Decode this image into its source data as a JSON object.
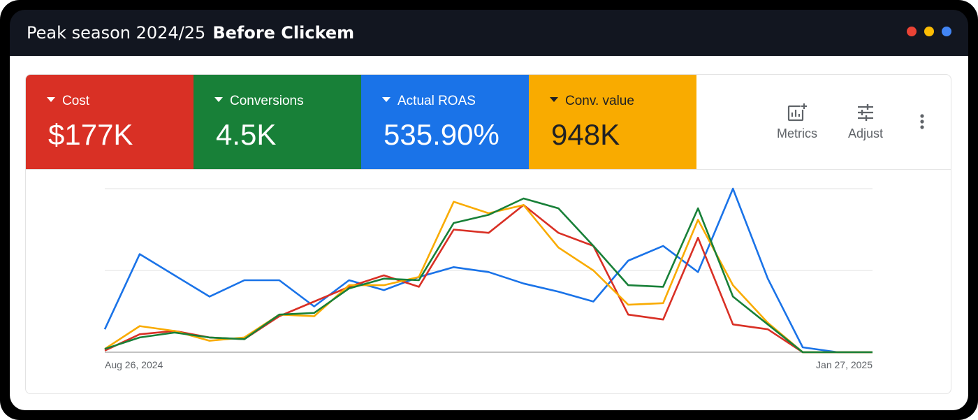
{
  "title": {
    "part1": "Peak season 2024/25",
    "part2": "Before Clickem"
  },
  "window_dots": [
    "#ea4335",
    "#fbbc04",
    "#4285f4"
  ],
  "metrics": [
    {
      "label": "Cost",
      "value": "$177K",
      "color": "#d93025",
      "text_color": "#ffffff"
    },
    {
      "label": "Conversions",
      "value": "4.5K",
      "color": "#188038",
      "text_color": "#ffffff"
    },
    {
      "label": "Actual ROAS",
      "value": "535.90%",
      "color": "#1a73e8",
      "text_color": "#ffffff"
    },
    {
      "label": "Conv. value",
      "value": "948K",
      "color": "#f9ab00",
      "text_color": "#202124"
    }
  ],
  "toolbar": {
    "metrics_label": "Metrics",
    "adjust_label": "Adjust"
  },
  "chart_data": {
    "type": "line",
    "x_start_label": "Aug 26, 2024",
    "x_end_label": "Jan 27, 2025",
    "ylim": [
      0,
      100
    ],
    "grid": true,
    "series": [
      {
        "color": "#1a73e8",
        "values": [
          14,
          60,
          47,
          34,
          44,
          44,
          28,
          44,
          38,
          46,
          52,
          49,
          42,
          37,
          31,
          56,
          65,
          49,
          100,
          45,
          3,
          0,
          0
        ]
      },
      {
        "color": "#d93025",
        "values": [
          1,
          11,
          13,
          9,
          8,
          22,
          31,
          40,
          47,
          40,
          75,
          73,
          90,
          73,
          65,
          23,
          20,
          70,
          17,
          14,
          0,
          0,
          0
        ]
      },
      {
        "color": "#f9ab00",
        "values": [
          2,
          16,
          13,
          7,
          9,
          23,
          22,
          41,
          41,
          46,
          92,
          85,
          90,
          64,
          50,
          29,
          30,
          81,
          41,
          18,
          0,
          0,
          0
        ]
      },
      {
        "color": "#188038",
        "values": [
          2,
          9,
          12,
          9,
          8,
          23,
          24,
          39,
          45,
          44,
          79,
          84,
          94,
          88,
          65,
          41,
          40,
          88,
          34,
          17,
          0,
          0,
          0
        ]
      }
    ]
  }
}
